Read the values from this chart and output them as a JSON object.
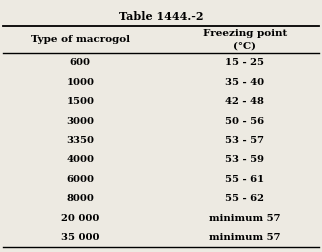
{
  "title": "Table 1444.-2",
  "col1_header": "Type of macrogol",
  "col2_header": "Freezing point\n(°C)",
  "rows": [
    [
      "600",
      "15 - 25"
    ],
    [
      "1000",
      "35 - 40"
    ],
    [
      "1500",
      "42 - 48"
    ],
    [
      "3000",
      "50 - 56"
    ],
    [
      "3350",
      "53 - 57"
    ],
    [
      "4000",
      "53 - 59"
    ],
    [
      "6000",
      "55 - 61"
    ],
    [
      "8000",
      "55 - 62"
    ],
    [
      "20 000",
      "minimum 57"
    ],
    [
      "35 000",
      "minimum 57"
    ]
  ],
  "bg_color": "#edeae2",
  "text_color": "#000000",
  "title_fontsize": 8.0,
  "header_fontsize": 7.5,
  "cell_fontsize": 7.2,
  "fig_width": 3.22,
  "fig_height": 2.52,
  "col_split": 0.52
}
